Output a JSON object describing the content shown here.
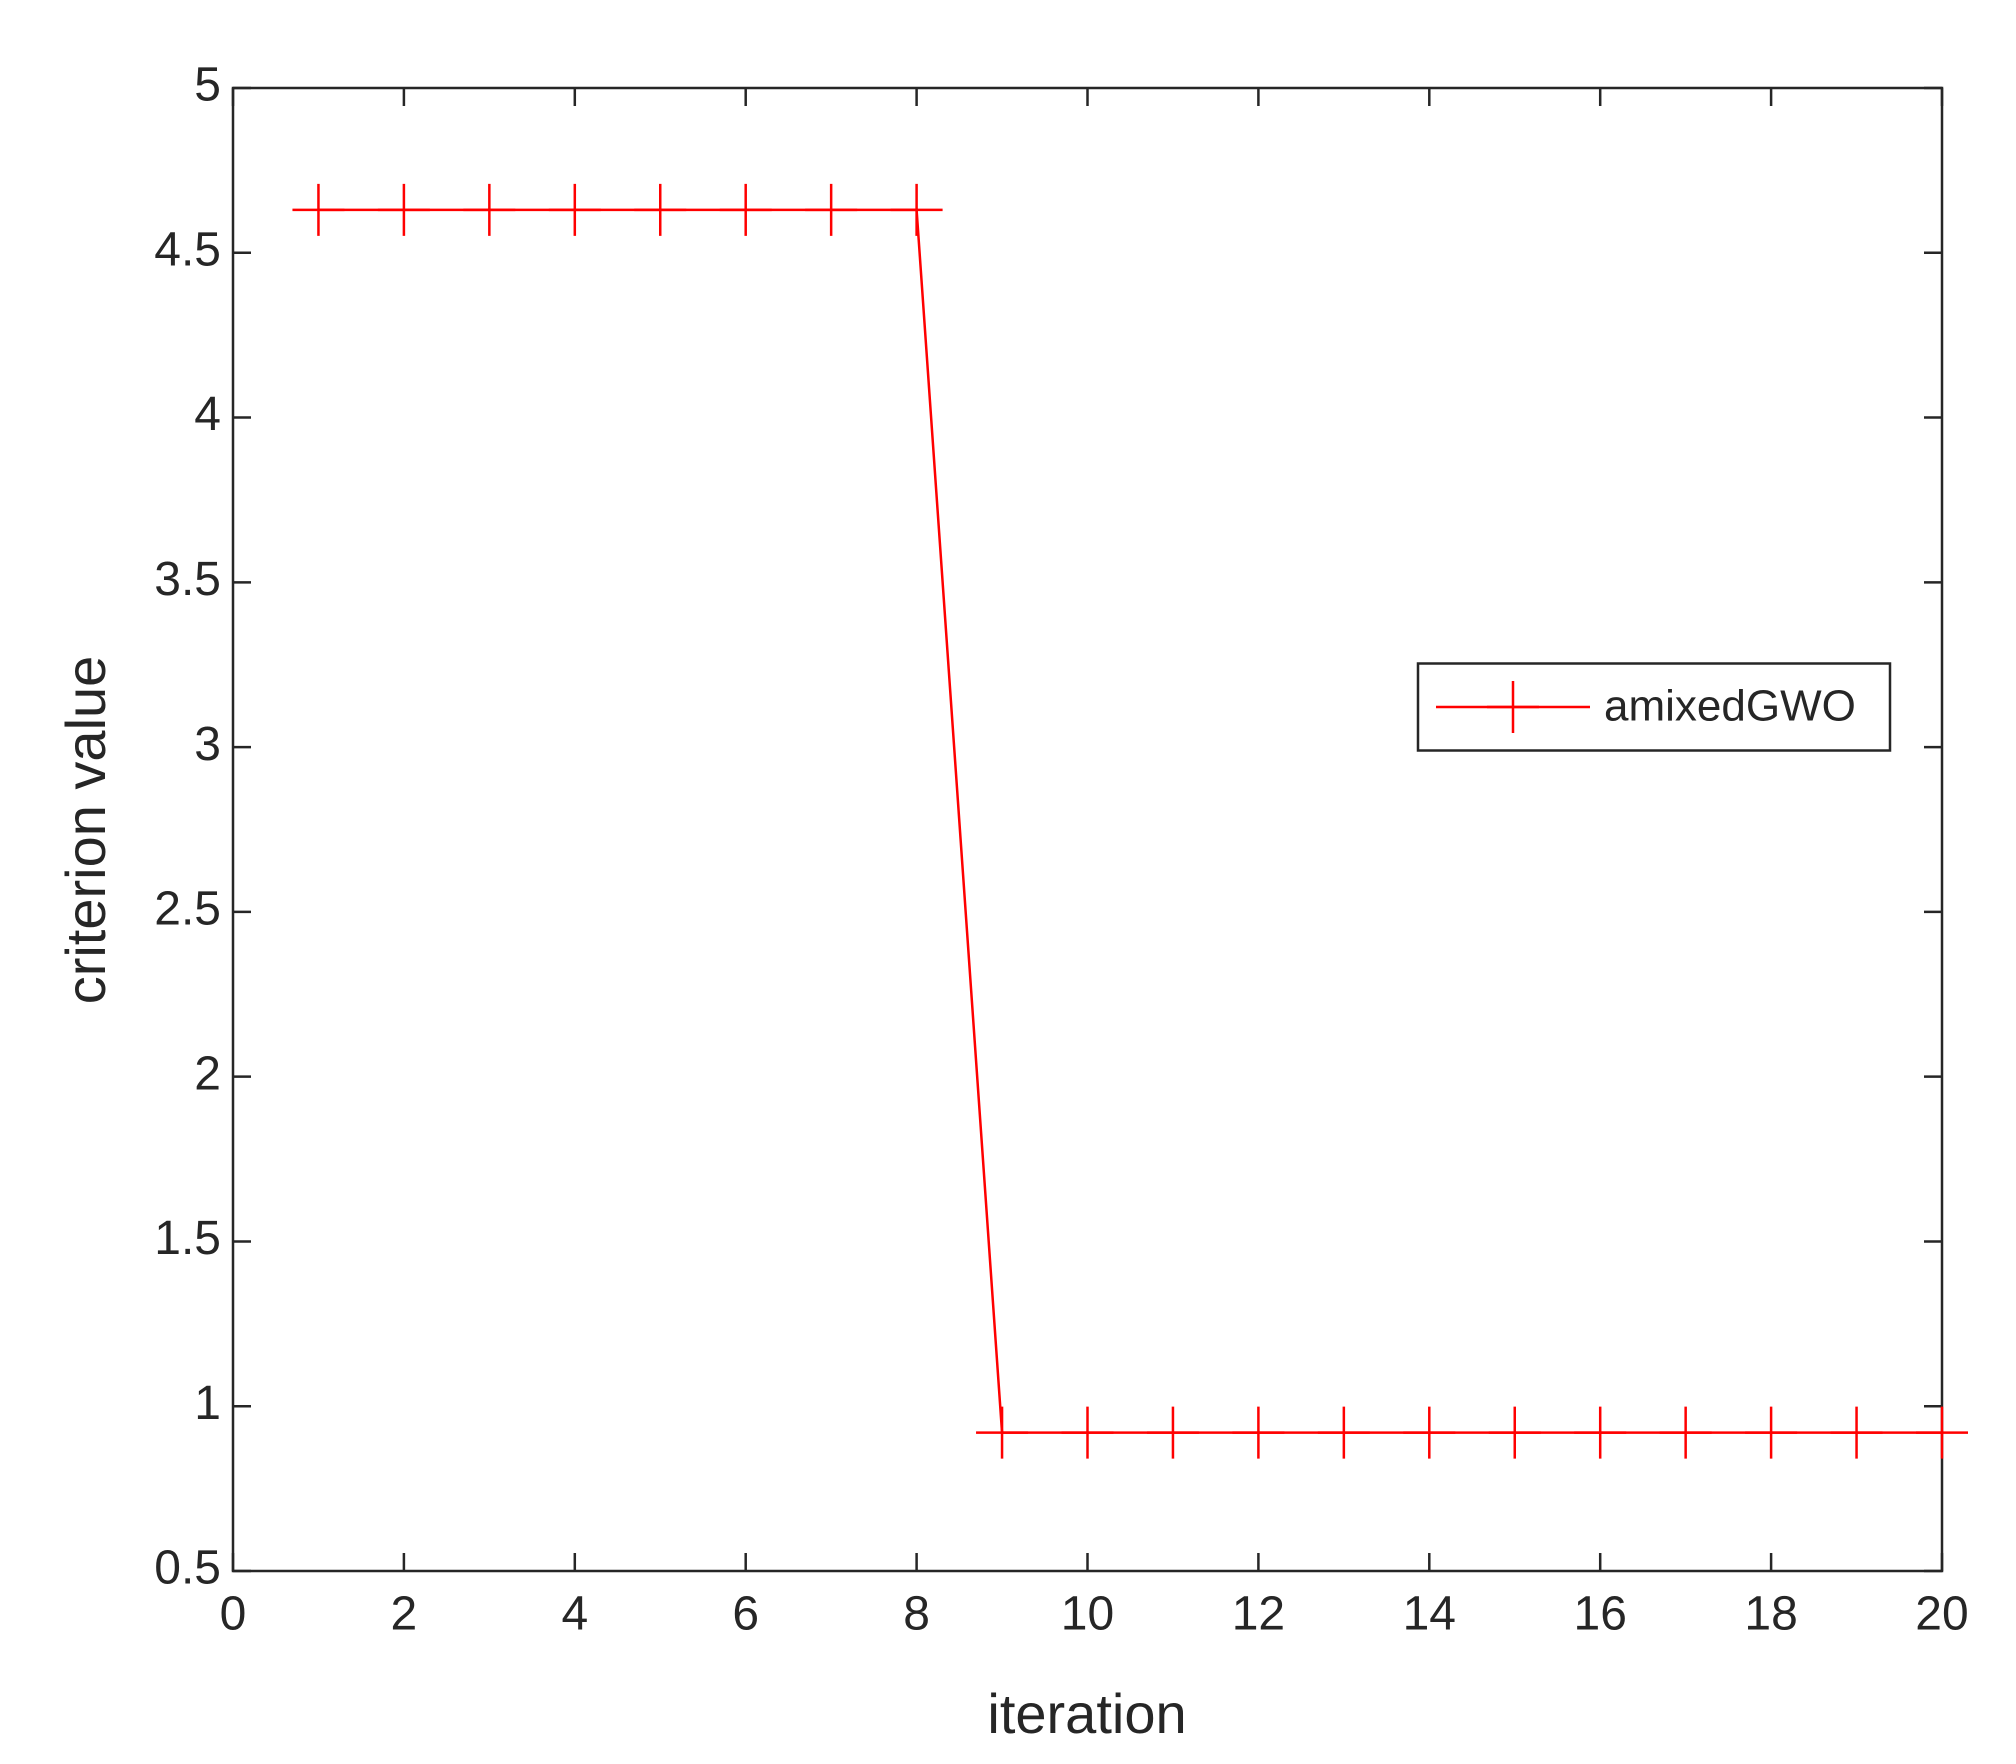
{
  "chart_data": {
    "type": "line",
    "x_label": "iteration",
    "y_label": "criterion value",
    "x": [
      1,
      2,
      3,
      4,
      5,
      6,
      7,
      8,
      9,
      10,
      11,
      12,
      13,
      14,
      15,
      16,
      17,
      18,
      19,
      20
    ],
    "series": [
      {
        "name": "amixedGWO",
        "color": "#ff0000",
        "marker": "+",
        "values": [
          4.63,
          4.63,
          4.63,
          4.63,
          4.63,
          4.63,
          4.63,
          4.63,
          0.92,
          0.92,
          0.92,
          0.92,
          0.92,
          0.92,
          0.92,
          0.92,
          0.92,
          0.92,
          0.92,
          0.92
        ]
      }
    ],
    "xlim": [
      0,
      20
    ],
    "xticks": [
      0,
      2,
      4,
      6,
      8,
      10,
      12,
      14,
      16,
      18,
      20
    ],
    "ylim": [
      0.5,
      5
    ],
    "yticks": [
      0.5,
      1,
      1.5,
      2,
      2.5,
      3,
      3.5,
      4,
      4.5,
      5
    ],
    "grid": false,
    "legend": "east"
  }
}
